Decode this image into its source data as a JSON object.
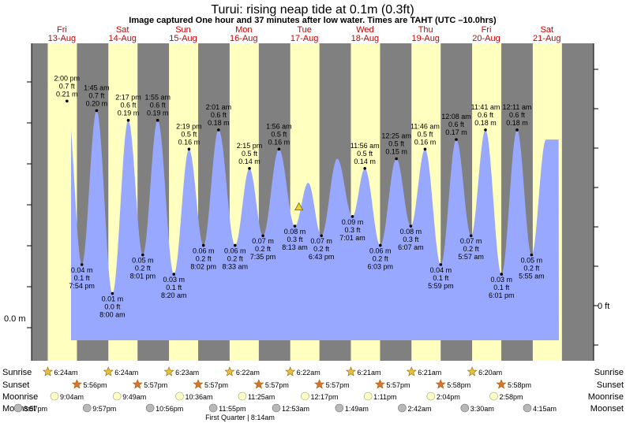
{
  "header": {
    "title": "Turui: rising  neap tide at 0.1m (0.3ft)",
    "subtitle": "Image captured One hour and 37 minutes after low water. Times are TAHT (UTC –10.0hrs)"
  },
  "days": [
    {
      "name": "Fri",
      "date": "13-Aug"
    },
    {
      "name": "Sat",
      "date": "14-Aug"
    },
    {
      "name": "Sun",
      "date": "15-Aug"
    },
    {
      "name": "Mon",
      "date": "16-Aug"
    },
    {
      "name": "Tue",
      "date": "17-Aug"
    },
    {
      "name": "Wed",
      "date": "18-Aug"
    },
    {
      "name": "Thu",
      "date": "19-Aug"
    },
    {
      "name": "Fri",
      "date": "20-Aug"
    },
    {
      "name": "Sat",
      "date": "21-Aug"
    }
  ],
  "chart_data": {
    "type": "area",
    "x_unit": "hours from 00:00 Fri 13-Aug (TAHT)",
    "y_unit": "m",
    "ylim": [
      -0.06,
      0.27
    ],
    "y_axis_left": [
      "0.0 m"
    ],
    "y_axis_right": [
      "0 ft"
    ],
    "current_level_m": 0.1,
    "series": [
      {
        "values": [
          {
            "t": "2:00 pm",
            "m": "0.21 m",
            "ft": "0.7 ft",
            "x": 14.0,
            "y": 0.21,
            "kind": "high"
          },
          {
            "t": "7:54 pm",
            "m": "0.04 m",
            "ft": "0.1 ft",
            "x": 19.9,
            "y": 0.04,
            "kind": "low"
          },
          {
            "t": "1:45 am",
            "m": "0.20 m",
            "ft": "0.7 ft",
            "x": 25.75,
            "y": 0.2,
            "kind": "high"
          },
          {
            "t": "8:00 am",
            "m": "0.01 m",
            "ft": "0.0 ft",
            "x": 32.0,
            "y": 0.01,
            "kind": "low"
          },
          {
            "t": "2:17 pm",
            "m": "0.19 m",
            "ft": "0.6 ft",
            "x": 38.28,
            "y": 0.19,
            "kind": "high"
          },
          {
            "t": "8:01 pm",
            "m": "0.05 m",
            "ft": "0.2 ft",
            "x": 44.02,
            "y": 0.05,
            "kind": "low"
          },
          {
            "t": "1:55 am",
            "m": "0.19 m",
            "ft": "0.6 ft",
            "x": 49.92,
            "y": 0.19,
            "kind": "high"
          },
          {
            "t": "8:20 am",
            "m": "0.03 m",
            "ft": "0.1 ft",
            "x": 56.33,
            "y": 0.03,
            "kind": "low"
          },
          {
            "t": "2:19 pm",
            "m": "0.16 m",
            "ft": "0.5 ft",
            "x": 62.32,
            "y": 0.16,
            "kind": "high"
          },
          {
            "t": "8:02 pm",
            "m": "0.06 m",
            "ft": "0.2 ft",
            "x": 68.03,
            "y": 0.06,
            "kind": "low"
          },
          {
            "t": "2:01 am",
            "m": "0.18 m",
            "ft": "0.6 ft",
            "x": 74.02,
            "y": 0.18,
            "kind": "high"
          },
          {
            "t": "8:33 am",
            "m": "0.06 m",
            "ft": "0.2 ft",
            "x": 80.55,
            "y": 0.06,
            "kind": "low"
          },
          {
            "t": "2:15 pm",
            "m": "0.14 m",
            "ft": "0.5 ft",
            "x": 86.25,
            "y": 0.14,
            "kind": "high"
          },
          {
            "t": "7:35 pm",
            "m": "0.07 m",
            "ft": "0.2 ft",
            "x": 91.58,
            "y": 0.07,
            "kind": "low"
          },
          {
            "t": "1:56 am",
            "m": "0.16 m",
            "ft": "0.5 ft",
            "x": 97.93,
            "y": 0.16,
            "kind": "high"
          },
          {
            "t": "8:13 am",
            "m": "0.08 m",
            "ft": "0.3 ft",
            "x": 104.22,
            "y": 0.08,
            "kind": "low"
          },
          {
            "t": "",
            "m": "",
            "ft": "",
            "x": 109.5,
            "y": 0.125,
            "kind": "unlabeled"
          },
          {
            "t": "6:43 pm",
            "m": "0.07 m",
            "ft": "0.2 ft",
            "x": 114.72,
            "y": 0.07,
            "kind": "low"
          },
          {
            "t": "",
            "m": "",
            "ft": "",
            "x": 121.0,
            "y": 0.15,
            "kind": "unlabeled"
          },
          {
            "t": "7:01 am",
            "m": "0.09 m",
            "ft": "0.3 ft",
            "x": 127.02,
            "y": 0.09,
            "kind": "low"
          },
          {
            "t": "11:56 am",
            "m": "0.14 m",
            "ft": "0.5 ft",
            "x": 131.93,
            "y": 0.14,
            "kind": "high"
          },
          {
            "t": "6:03 pm",
            "m": "0.06 m",
            "ft": "0.2 ft",
            "x": 138.05,
            "y": 0.06,
            "kind": "low"
          },
          {
            "t": "12:25 am",
            "m": "0.15 m",
            "ft": "0.5 ft",
            "x": 144.42,
            "y": 0.15,
            "kind": "high"
          },
          {
            "t": "6:07 am",
            "m": "0.08 m",
            "ft": "0.3 ft",
            "x": 150.12,
            "y": 0.08,
            "kind": "low"
          },
          {
            "t": "11:46 am",
            "m": "0.16 m",
            "ft": "0.5 ft",
            "x": 155.77,
            "y": 0.16,
            "kind": "high"
          },
          {
            "t": "5:59 pm",
            "m": "0.04 m",
            "ft": "0.1 ft",
            "x": 161.98,
            "y": 0.04,
            "kind": "low"
          },
          {
            "t": "12:08 am",
            "m": "0.17 m",
            "ft": "0.6 ft",
            "x": 168.13,
            "y": 0.17,
            "kind": "high"
          },
          {
            "t": "5:57 am",
            "m": "0.07 m",
            "ft": "0.2 ft",
            "x": 173.95,
            "y": 0.07,
            "kind": "low"
          },
          {
            "t": "11:41 am",
            "m": "0.18 m",
            "ft": "0.6 ft",
            "x": 179.68,
            "y": 0.18,
            "kind": "high"
          },
          {
            "t": "6:01 pm",
            "m": "0.03 m",
            "ft": "0.1 ft",
            "x": 186.02,
            "y": 0.03,
            "kind": "low"
          },
          {
            "t": "12:11 am",
            "m": "0.18 m",
            "ft": "0.6 ft",
            "x": 192.18,
            "y": 0.18,
            "kind": "high"
          },
          {
            "t": "5:55 am",
            "m": "0.05 m",
            "ft": "0.2 ft",
            "x": 197.92,
            "y": 0.05,
            "kind": "low"
          }
        ]
      }
    ]
  },
  "rows": {
    "sunrise": "Sunrise",
    "sunset": "Sunset",
    "moonrise": "Moonrise",
    "moonset": "Moonset"
  },
  "sunrise": [
    "6:24am",
    "6:24am",
    "6:23am",
    "6:22am",
    "6:22am",
    "6:21am",
    "6:21am",
    "6:20am"
  ],
  "sunset": [
    "5:56pm",
    "5:57pm",
    "5:57pm",
    "5:57pm",
    "5:57pm",
    "5:57pm",
    "5:58pm",
    "5:58pm"
  ],
  "moonrise": [
    "9:04am",
    "9:49am",
    "10:36am",
    "11:25am",
    "12:17pm",
    "1:11pm",
    "2:04pm",
    "2:58pm"
  ],
  "moonset": [
    "8:57pm",
    "9:57pm",
    "10:56pm",
    "11:55pm",
    "12:53am",
    "1:49am",
    "2:42am",
    "3:30am",
    "4:15am"
  ],
  "moon_phase": "First Quarter | 8:14am",
  "colors": {
    "night": "#808080",
    "day": "#ffffc0",
    "water": "#99a8ff",
    "day_label": "#cc0000",
    "sun_icon": "#e8c040",
    "sunset_icon": "#e07030"
  }
}
